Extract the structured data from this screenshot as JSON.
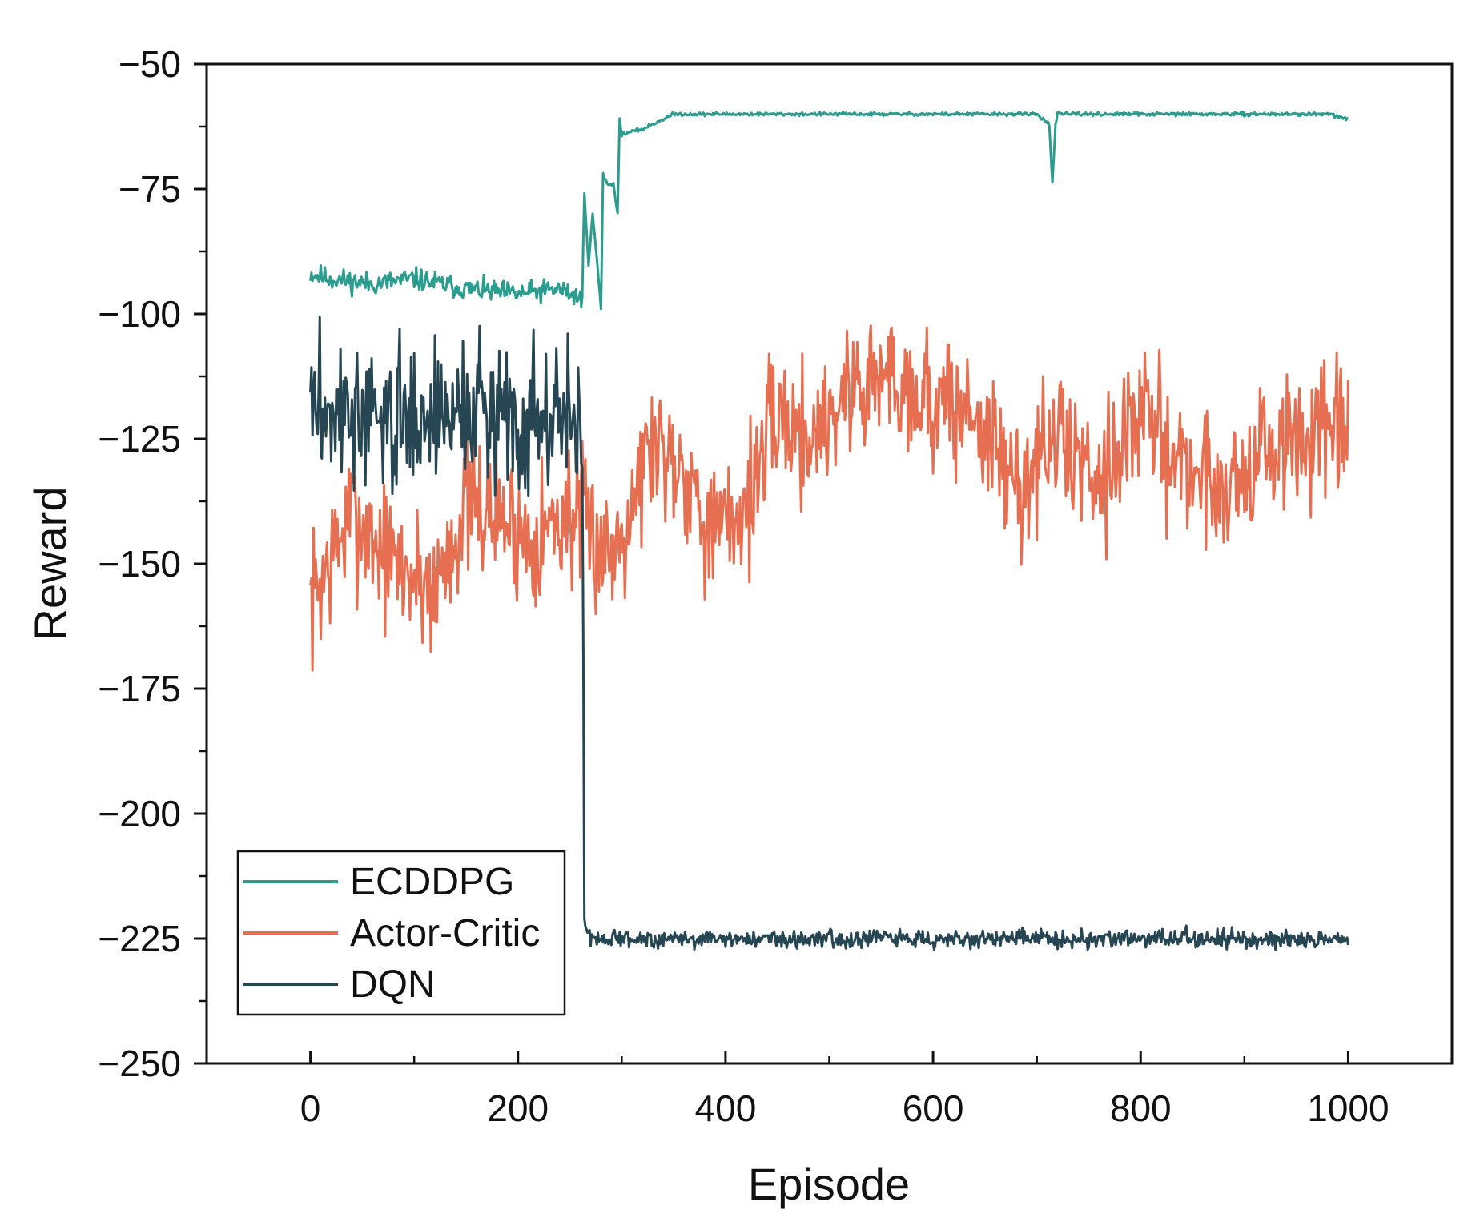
{
  "chart_data": {
    "type": "line",
    "title": "",
    "xlabel": "Episode",
    "ylabel": "Reward",
    "xlim": [
      -100,
      1100
    ],
    "ylim": [
      -250,
      -50
    ],
    "xticks": [
      0,
      200,
      400,
      600,
      800,
      1000
    ],
    "yticks": [
      -50,
      -75,
      -100,
      -125,
      -150,
      -175,
      -200,
      -225,
      -250
    ],
    "xtick_labels": [
      "0",
      "200",
      "400",
      "600",
      "800",
      "1000"
    ],
    "ytick_labels": [
      "−50",
      "−75",
      "−100",
      "−125",
      "−150",
      "−175",
      "−200",
      "−225",
      "−250"
    ],
    "grid": false,
    "legend_position": "bottom-left",
    "series": [
      {
        "name": "ECDDPG",
        "color": "#2a9d8f",
        "episodes": [
          0,
          1000
        ],
        "keypoints": [
          [
            0,
            -92
          ],
          [
            20,
            -93
          ],
          [
            60,
            -94
          ],
          [
            100,
            -93
          ],
          [
            150,
            -95
          ],
          [
            200,
            -96
          ],
          [
            240,
            -95
          ],
          [
            262,
            -97
          ],
          [
            264,
            -76
          ],
          [
            268,
            -90
          ],
          [
            272,
            -80
          ],
          [
            276,
            -89
          ],
          [
            280,
            -99
          ],
          [
            282,
            -72
          ],
          [
            286,
            -74
          ],
          [
            292,
            -74
          ],
          [
            296,
            -80
          ],
          [
            298,
            -61
          ],
          [
            300,
            -64
          ],
          [
            320,
            -63
          ],
          [
            350,
            -60
          ],
          [
            400,
            -60
          ],
          [
            500,
            -60
          ],
          [
            600,
            -60
          ],
          [
            700,
            -60
          ],
          [
            712,
            -62
          ],
          [
            715,
            -74
          ],
          [
            718,
            -62
          ],
          [
            720,
            -60
          ],
          [
            800,
            -60
          ],
          [
            900,
            -60
          ],
          [
            980,
            -60
          ],
          [
            1000,
            -61
          ]
        ],
        "noise": [
          2.2,
          0.35
        ],
        "seed": 11
      },
      {
        "name": "Actor-Critic",
        "color": "#e76f51",
        "episodes": [
          0,
          1000
        ],
        "keypoints": [
          [
            0,
            -158
          ],
          [
            40,
            -140
          ],
          [
            80,
            -150
          ],
          [
            120,
            -155
          ],
          [
            150,
            -138
          ],
          [
            180,
            -140
          ],
          [
            210,
            -145
          ],
          [
            250,
            -140
          ],
          [
            290,
            -148
          ],
          [
            330,
            -125
          ],
          [
            360,
            -130
          ],
          [
            390,
            -145
          ],
          [
            420,
            -138
          ],
          [
            450,
            -120
          ],
          [
            480,
            -125
          ],
          [
            520,
            -115
          ],
          [
            560,
            -112
          ],
          [
            600,
            -118
          ],
          [
            640,
            -120
          ],
          [
            680,
            -135
          ],
          [
            720,
            -125
          ],
          [
            760,
            -132
          ],
          [
            800,
            -120
          ],
          [
            840,
            -130
          ],
          [
            880,
            -135
          ],
          [
            920,
            -128
          ],
          [
            960,
            -125
          ],
          [
            1000,
            -125
          ]
        ],
        "noise": [
          14.0,
          14.0
        ],
        "seed": 7
      },
      {
        "name": "DQN",
        "color": "#264653",
        "episodes": [
          0,
          1000
        ],
        "keypoints": [
          [
            0,
            -118
          ],
          [
            60,
            -122
          ],
          [
            120,
            -120
          ],
          [
            180,
            -119
          ],
          [
            240,
            -121
          ],
          [
            262,
            -120
          ],
          [
            264,
            -222
          ],
          [
            270,
            -225
          ],
          [
            1000,
            -225
          ]
        ],
        "noise": [
          14.0,
          1.8
        ],
        "seed": 3
      }
    ]
  }
}
